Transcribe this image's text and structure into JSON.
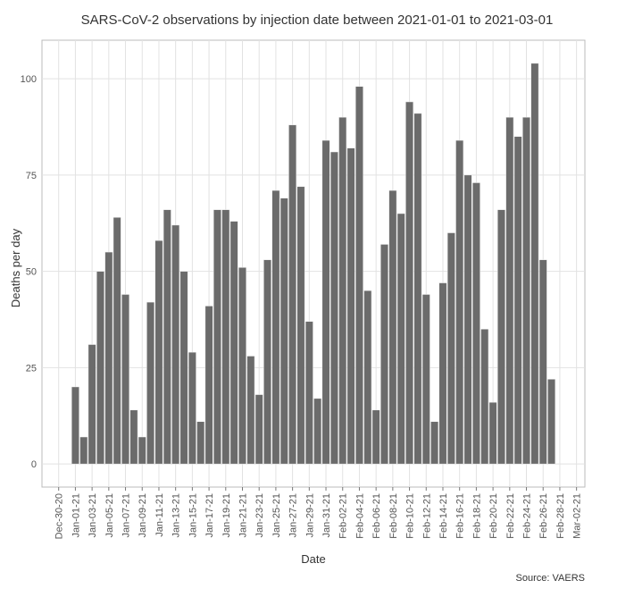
{
  "chart_data": {
    "type": "bar",
    "title": "SARS-CoV-2 observations by injection date between 2021-01-01 to 2021-03-01",
    "x_label": "Date",
    "y_label": "Deaths per day",
    "caption": "Source: VAERS",
    "color": "#6b6b6b",
    "grid": true,
    "x": [
      "2021-01-01",
      "2021-01-02",
      "2021-01-03",
      "2021-01-04",
      "2021-01-05",
      "2021-01-06",
      "2021-01-07",
      "2021-01-08",
      "2021-01-09",
      "2021-01-10",
      "2021-01-11",
      "2021-01-12",
      "2021-01-13",
      "2021-01-14",
      "2021-01-15",
      "2021-01-16",
      "2021-01-17",
      "2021-01-18",
      "2021-01-19",
      "2021-01-20",
      "2021-01-21",
      "2021-01-22",
      "2021-01-23",
      "2021-01-24",
      "2021-01-25",
      "2021-01-26",
      "2021-01-27",
      "2021-01-28",
      "2021-01-29",
      "2021-01-30",
      "2021-01-31",
      "2021-02-01",
      "2021-02-02",
      "2021-02-03",
      "2021-02-04",
      "2021-02-05",
      "2021-02-06",
      "2021-02-07",
      "2021-02-08",
      "2021-02-09",
      "2021-02-10",
      "2021-02-11",
      "2021-02-12",
      "2021-02-13",
      "2021-02-14",
      "2021-02-15",
      "2021-02-16",
      "2021-02-17",
      "2021-02-18",
      "2021-02-19",
      "2021-02-20",
      "2021-02-21",
      "2021-02-22",
      "2021-02-23",
      "2021-02-24",
      "2021-02-25",
      "2021-02-26",
      "2021-02-27"
    ],
    "values": [
      20,
      7,
      31,
      50,
      55,
      64,
      44,
      14,
      7,
      42,
      58,
      66,
      62,
      50,
      29,
      11,
      41,
      66,
      66,
      63,
      51,
      28,
      18,
      53,
      71,
      69,
      88,
      72,
      37,
      17,
      84,
      81,
      90,
      82,
      98,
      45,
      14,
      57,
      71,
      65,
      94,
      91,
      44,
      11,
      47,
      60,
      84,
      75,
      73,
      35,
      16,
      66,
      90,
      85,
      90,
      104,
      53,
      22
    ],
    "xlim": [
      "2020-12-28",
      "2021-03-03"
    ],
    "xticks": [
      {
        "value": "2020-12-30",
        "label": "Dec-30-20"
      },
      {
        "value": "2021-01-01",
        "label": "Jan-01-21"
      },
      {
        "value": "2021-01-03",
        "label": "Jan-03-21"
      },
      {
        "value": "2021-01-05",
        "label": "Jan-05-21"
      },
      {
        "value": "2021-01-07",
        "label": "Jan-07-21"
      },
      {
        "value": "2021-01-09",
        "label": "Jan-09-21"
      },
      {
        "value": "2021-01-11",
        "label": "Jan-11-21"
      },
      {
        "value": "2021-01-13",
        "label": "Jan-13-21"
      },
      {
        "value": "2021-01-15",
        "label": "Jan-15-21"
      },
      {
        "value": "2021-01-17",
        "label": "Jan-17-21"
      },
      {
        "value": "2021-01-19",
        "label": "Jan-19-21"
      },
      {
        "value": "2021-01-21",
        "label": "Jan-21-21"
      },
      {
        "value": "2021-01-23",
        "label": "Jan-23-21"
      },
      {
        "value": "2021-01-25",
        "label": "Jan-25-21"
      },
      {
        "value": "2021-01-27",
        "label": "Jan-27-21"
      },
      {
        "value": "2021-01-29",
        "label": "Jan-29-21"
      },
      {
        "value": "2021-01-31",
        "label": "Jan-31-21"
      },
      {
        "value": "2021-02-02",
        "label": "Feb-02-21"
      },
      {
        "value": "2021-02-04",
        "label": "Feb-04-21"
      },
      {
        "value": "2021-02-06",
        "label": "Feb-06-21"
      },
      {
        "value": "2021-02-08",
        "label": "Feb-08-21"
      },
      {
        "value": "2021-02-10",
        "label": "Feb-10-21"
      },
      {
        "value": "2021-02-12",
        "label": "Feb-12-21"
      },
      {
        "value": "2021-02-14",
        "label": "Feb-14-21"
      },
      {
        "value": "2021-02-16",
        "label": "Feb-16-21"
      },
      {
        "value": "2021-02-18",
        "label": "Feb-18-21"
      },
      {
        "value": "2021-02-20",
        "label": "Feb-20-21"
      },
      {
        "value": "2021-02-22",
        "label": "Feb-22-21"
      },
      {
        "value": "2021-02-24",
        "label": "Feb-24-21"
      },
      {
        "value": "2021-02-26",
        "label": "Feb-26-21"
      },
      {
        "value": "2021-02-28",
        "label": "Feb-28-21"
      },
      {
        "value": "2021-03-02",
        "label": "Mar-02-21"
      }
    ],
    "ylim": [
      -6,
      110
    ],
    "yticks": [
      0,
      25,
      50,
      75,
      100
    ]
  }
}
